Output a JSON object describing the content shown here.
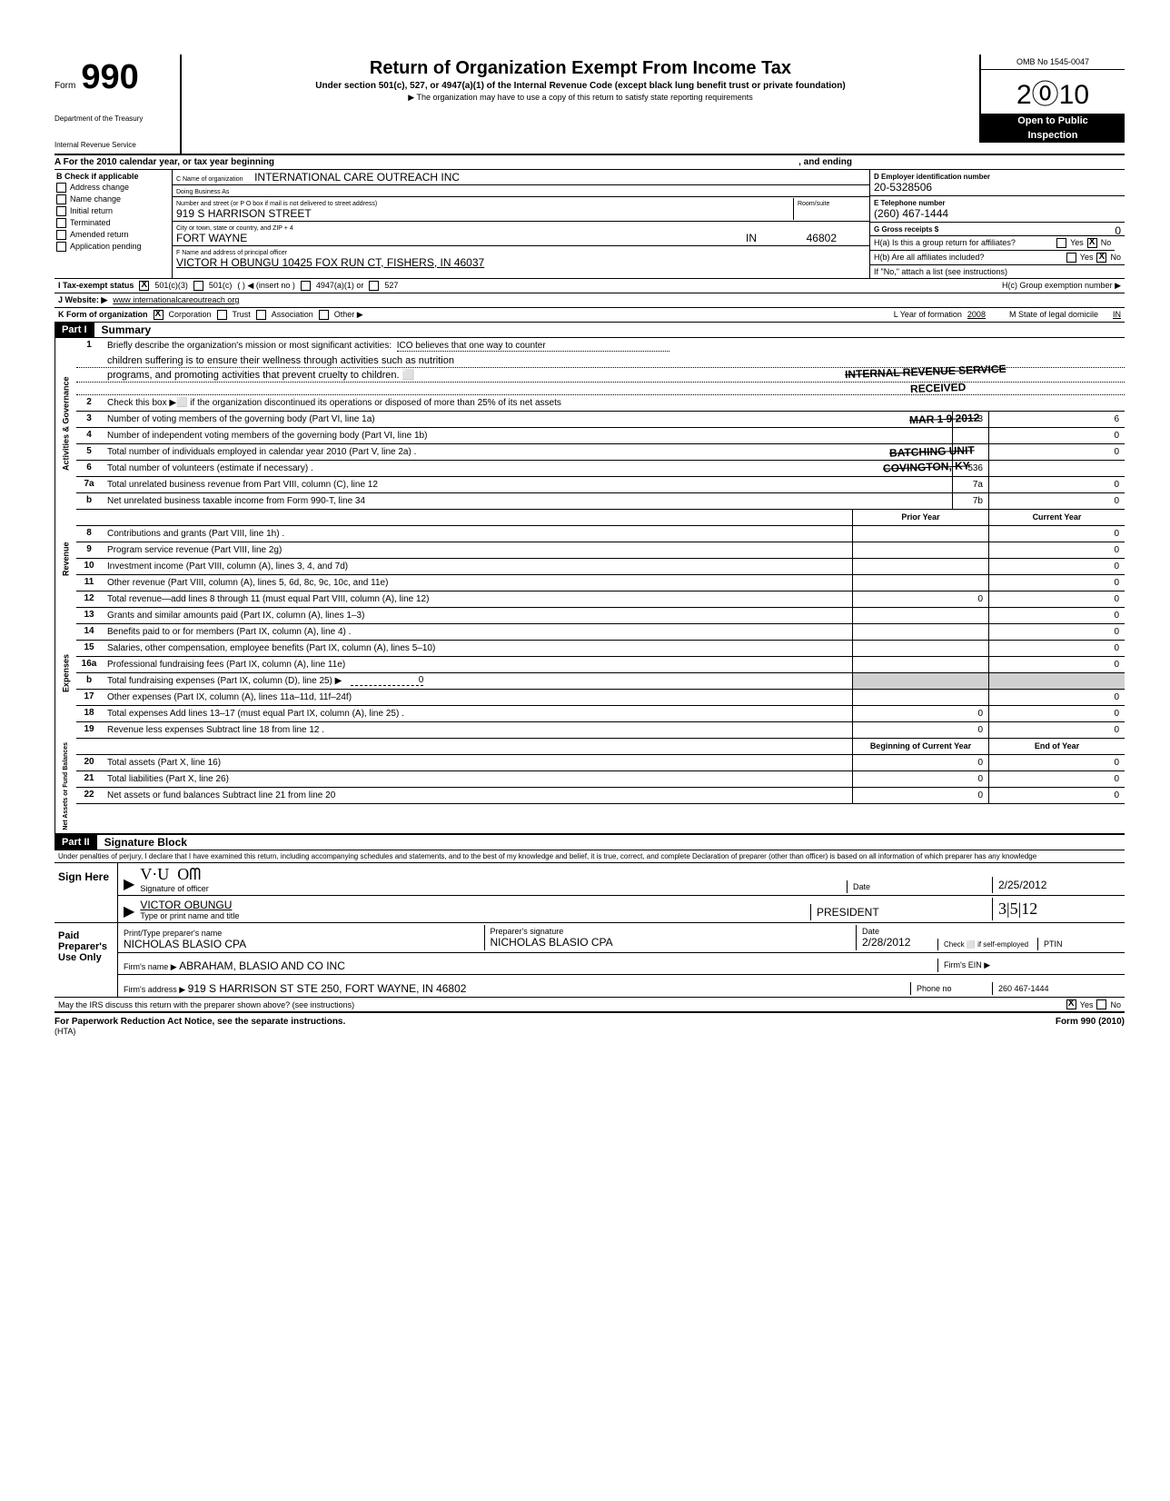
{
  "header": {
    "form_label": "Form",
    "form_number": "990",
    "treasury1": "Department of the Treasury",
    "treasury2": "Internal Revenue Service",
    "title": "Return of Organization Exempt From Income Tax",
    "subtitle": "Under section 501(c), 527, or 4947(a)(1) of the Internal Revenue Code (except black lung benefit trust or private foundation)",
    "note": "▶ The organization may have to use a copy of this return to satisfy state reporting requirements",
    "omb": "OMB No 1545-0047",
    "year": "2⓪10",
    "open": "Open to Public",
    "inspection": "Inspection"
  },
  "row_a": {
    "left": "A   For the 2010 calendar year, or tax year beginning",
    "mid": ", and ending"
  },
  "col_b": {
    "header": "B  Check if applicable",
    "items": [
      "Address change",
      "Name change",
      "Initial return",
      "Terminated",
      "Amended return",
      "Application pending"
    ]
  },
  "col_c": {
    "name_lbl": "C  Name of organization",
    "name_val": "INTERNATIONAL CARE OUTREACH INC",
    "dba_lbl": "Doing Business As",
    "dba_val": "",
    "street_lbl": "Number and street (or P O  box if mail is not delivered to street address)",
    "room_lbl": "Room/suite",
    "street_val": "919 S HARRISON STREET",
    "city_lbl": "City or town, state or country, and ZIP + 4",
    "city_val": "FORT WAYNE",
    "state_val": "IN",
    "zip_val": "46802",
    "officer_lbl": "F   Name and address of principal officer",
    "officer_val": "VICTOR H  OBUNGU 10425 FOX RUN CT, FISHERS, IN  46037"
  },
  "col_d": {
    "d_lbl": "D  Employer identification number",
    "d_val": "20-5328506",
    "e_lbl": "E  Telephone number",
    "e_val": "(260) 467-1444",
    "g_lbl": "G  Gross receipts $",
    "g_val": "0",
    "ha_lbl": "H(a) Is this a group return for affiliates?",
    "hb_lbl": "H(b) Are all affiliates included?",
    "hb_note": "If \"No,\" attach a list  (see instructions)",
    "hc_lbl": "H(c) Group exemption number ▶"
  },
  "row_i": {
    "lbl": "I    Tax-exempt status",
    "opts": [
      "501(c)(3)",
      "501(c)",
      "(          ) ◀ (insert no )",
      "4947(a)(1) or",
      "527"
    ]
  },
  "row_j": {
    "lbl": "J   Website: ▶",
    "val": "www internationalcareoutreach org"
  },
  "row_k": {
    "lbl": "K  Form of organization",
    "opts": [
      "Corporation",
      "Trust",
      "Association",
      "Other ▶"
    ],
    "l_lbl": "L Year of formation",
    "l_val": "2008",
    "m_lbl": "M State of legal domicile",
    "m_val": "IN"
  },
  "part1": {
    "hdr": "Part I",
    "title": "Summary",
    "mission_lbl": "Briefly describe the organization's mission or most significant activities:",
    "mission1": "ICO believes that one way to counter",
    "mission2": "children suffering is to ensure their wellness through activities such as nutrition",
    "mission3": "programs, and promoting activities that prevent cruelty to children. ⬜",
    "line2": "Check this box  ▶⬜ if the organization discontinued its operations or disposed of more than 25% of its net assets",
    "stamp1": "INTERNAL REVENUE SERVICE",
    "stamp2": "RECEIVED",
    "stamp3": "MAR 1 9 2012",
    "stamp4": "BATCHING UNIT",
    "stamp5": "COVINGTON, KY",
    "prior_hdr": "Prior Year",
    "current_hdr": "Current Year",
    "boy_hdr": "Beginning of Current Year",
    "eoy_hdr": "End of Year"
  },
  "lines_ag": [
    {
      "n": "3",
      "d": "Number of voting members of the governing body (Part VI, line 1a)",
      "b": "3",
      "v": "6"
    },
    {
      "n": "4",
      "d": "Number of independent voting members of the governing body (Part VI, line 1b)",
      "b": "",
      "v": "0"
    },
    {
      "n": "5",
      "d": "Total number of individuals employed in calendar year 2010 (Part V, line 2a) .",
      "b": "",
      "v": "0"
    },
    {
      "n": "6",
      "d": "Total number of volunteers (estimate if necessary) .",
      "b": "536",
      "v": ""
    },
    {
      "n": "7a",
      "d": "Total unrelated business revenue from Part VIII, column (C), line 12",
      "b": "7a",
      "v": "0"
    },
    {
      "n": "b",
      "d": "Net unrelated business taxable income from Form 990-T, line 34",
      "b": "7b",
      "v": "0"
    }
  ],
  "lines_rev": [
    {
      "n": "8",
      "d": "Contributions and grants (Part VIII, line 1h) .",
      "p": "",
      "c": "0"
    },
    {
      "n": "9",
      "d": "Program service revenue (Part VIII, line 2g)",
      "p": "",
      "c": "0"
    },
    {
      "n": "10",
      "d": "Investment income (Part VIII, column (A), lines 3, 4, and 7d)",
      "p": "",
      "c": "0"
    },
    {
      "n": "11",
      "d": "Other revenue (Part VIII, column (A), lines 5, 6d, 8c, 9c, 10c, and 11e)",
      "p": "",
      "c": "0"
    },
    {
      "n": "12",
      "d": "Total revenue—add lines 8 through 11 (must equal Part VIII, column (A), line 12)",
      "p": "0",
      "c": "0"
    }
  ],
  "lines_exp": [
    {
      "n": "13",
      "d": "Grants and similar amounts paid (Part IX, column (A), lines 1–3)",
      "p": "",
      "c": "0"
    },
    {
      "n": "14",
      "d": "Benefits paid to or for members (Part IX, column (A), line 4) .",
      "p": "",
      "c": "0"
    },
    {
      "n": "15",
      "d": "Salaries, other compensation, employee benefits (Part IX, column (A), lines 5–10)",
      "p": "",
      "c": "0"
    },
    {
      "n": "16a",
      "d": "Professional fundraising fees (Part IX, column (A), line 11e)",
      "p": "",
      "c": "0"
    },
    {
      "n": "b",
      "d": "Total fundraising expenses (Part IX, column (D), line 25) ▶",
      "p": "shade",
      "c": "shade",
      "extra": "0"
    },
    {
      "n": "17",
      "d": "Other expenses (Part IX, column (A), lines 11a–11d, 11f–24f)",
      "p": "",
      "c": "0"
    },
    {
      "n": "18",
      "d": "Total expenses  Add lines 13–17 (must equal Part IX, column (A), line 25) .",
      "p": "0",
      "c": "0"
    },
    {
      "n": "19",
      "d": "Revenue less expenses  Subtract line 18 from line 12 .",
      "p": "0",
      "c": "0"
    }
  ],
  "lines_na": [
    {
      "n": "20",
      "d": "Total assets (Part X, line 16)",
      "p": "0",
      "c": "0"
    },
    {
      "n": "21",
      "d": "Total liabilities (Part X, line 26)",
      "p": "0",
      "c": "0"
    },
    {
      "n": "22",
      "d": "Net assets or fund balances  Subtract line 21 from line 20",
      "p": "0",
      "c": "0"
    }
  ],
  "part2": {
    "hdr": "Part II",
    "title": "Signature Block",
    "perjury": "Under penalties of perjury, I declare that I have examined this return, including accompanying schedules and statements, and to the best of my knowledge and belief, it is true, correct, and complete  Declaration of preparer (other than officer) is based on all information of which preparer has any knowledge"
  },
  "sign": {
    "left": "Sign Here",
    "sig_lbl": "Signature of officer",
    "date_lbl": "Date",
    "date_val": "2/25/2012",
    "name_val": "VICTOR OBUNGU",
    "title_val": "PRESIDENT",
    "hand_date": "3|5|12",
    "type_lbl": "Type or print name and title"
  },
  "paid": {
    "left": "Paid Preparer's Use Only",
    "name_lbl": "Print/Type preparer's name",
    "name_val": "NICHOLAS BLASIO CPA",
    "sig_lbl": "Preparer's signature",
    "sig_val": "NICHOLAS BLASIO CPA",
    "date_lbl": "Date",
    "date_val": "2/28/2012",
    "check_lbl": "Check ⬜ if self-employed",
    "ptin_lbl": "PTIN",
    "firm_lbl": "Firm's name   ▶",
    "firm_val": "ABRAHAM, BLASIO AND CO INC",
    "ein_lbl": "Firm's EIN ▶",
    "addr_lbl": "Firm's address ▶",
    "addr_val": "919 S HARRISON ST STE 250, FORT WAYNE, IN 46802",
    "phone_lbl": "Phone no",
    "phone_val": "260 467-1444"
  },
  "discuss": {
    "text": "May the IRS discuss this return with the preparer shown above? (see instructions)",
    "yes": "Yes",
    "no": "No"
  },
  "footer": {
    "left": "For Paperwork Reduction Act Notice, see the separate instructions.",
    "hta": "(HTA)",
    "right": "Form 990 (2010)"
  },
  "side_labels": {
    "ag": "Activities & Governance",
    "rev": "Revenue",
    "exp": "Expenses",
    "na": "Net Assets or Fund Balances"
  }
}
